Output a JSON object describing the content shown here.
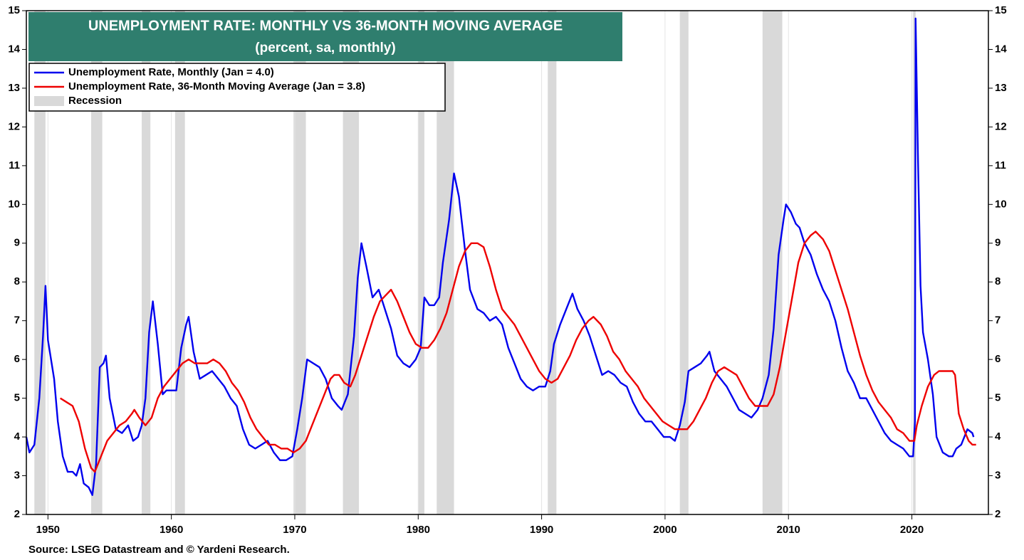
{
  "chart_data": {
    "type": "line",
    "title": "UNEMPLOYMENT RATE: MONTHLY VS 36-MONTH MOVING AVERAGE",
    "subtitle": "(percent, sa, monthly)",
    "source": "Source: LSEG Datastream and © Yardeni Research.",
    "xlim": [
      1948.25,
      2026.2
    ],
    "ylim": [
      2,
      15
    ],
    "xticks": [
      1950,
      1960,
      1970,
      1980,
      1990,
      2000,
      2010,
      2020
    ],
    "yticks": [
      2,
      3,
      4,
      5,
      6,
      7,
      8,
      9,
      10,
      11,
      12,
      13,
      14,
      15
    ],
    "grid": true,
    "recession_label": "Recession",
    "recession_color": "#d9d9d9",
    "recessions": [
      [
        1948.9,
        1949.8
      ],
      [
        1953.5,
        1954.4
      ],
      [
        1957.6,
        1958.3
      ],
      [
        1960.3,
        1961.1
      ],
      [
        1969.9,
        1970.9
      ],
      [
        1973.9,
        1975.2
      ],
      [
        1980.0,
        1980.5
      ],
      [
        1981.5,
        1982.9
      ],
      [
        1990.5,
        1991.2
      ],
      [
        2001.2,
        2001.9
      ],
      [
        2007.9,
        2009.5
      ],
      [
        2020.1,
        2020.3
      ]
    ],
    "series": [
      {
        "name": "Unemployment Rate, Monthly  (Jan = 4.0)",
        "color": "#0000ee",
        "x": [
          1948.25,
          1948.5,
          1948.9,
          1949.3,
          1949.6,
          1949.8,
          1950.0,
          1950.5,
          1950.8,
          1951.2,
          1951.6,
          1952.0,
          1952.3,
          1952.6,
          1952.9,
          1953.3,
          1953.6,
          1953.9,
          1954.2,
          1954.5,
          1954.7,
          1955.0,
          1955.5,
          1956.0,
          1956.5,
          1956.9,
          1957.3,
          1957.6,
          1957.9,
          1958.2,
          1958.5,
          1958.9,
          1959.3,
          1959.6,
          1960.0,
          1960.4,
          1960.8,
          1961.2,
          1961.4,
          1961.8,
          1962.3,
          1962.8,
          1963.3,
          1963.8,
          1964.3,
          1964.8,
          1965.3,
          1965.8,
          1966.3,
          1966.8,
          1967.3,
          1967.8,
          1968.3,
          1968.8,
          1969.3,
          1969.8,
          1970.2,
          1970.6,
          1971.0,
          1971.5,
          1972.0,
          1972.5,
          1973.0,
          1973.5,
          1973.8,
          1974.3,
          1974.8,
          1975.1,
          1975.4,
          1975.8,
          1976.3,
          1976.8,
          1977.3,
          1977.8,
          1978.3,
          1978.8,
          1979.3,
          1979.8,
          1980.2,
          1980.5,
          1980.9,
          1981.3,
          1981.7,
          1982.0,
          1982.5,
          1982.9,
          1983.3,
          1983.8,
          1984.2,
          1984.8,
          1985.3,
          1985.8,
          1986.3,
          1986.8,
          1987.3,
          1987.8,
          1988.3,
          1988.8,
          1989.3,
          1989.8,
          1990.3,
          1990.7,
          1991.0,
          1991.5,
          1992.0,
          1992.5,
          1992.9,
          1993.4,
          1993.9,
          1994.4,
          1994.9,
          1995.4,
          1995.9,
          1996.4,
          1996.9,
          1997.4,
          1997.9,
          1998.4,
          1998.9,
          1999.4,
          1999.9,
          2000.4,
          2000.8,
          2001.2,
          2001.6,
          2001.9,
          2002.4,
          2002.9,
          2003.4,
          2003.6,
          2004.0,
          2004.5,
          2005.0,
          2005.5,
          2006.0,
          2006.5,
          2007.0,
          2007.5,
          2007.9,
          2008.4,
          2008.8,
          2009.2,
          2009.6,
          2009.8,
          2010.2,
          2010.6,
          2010.9,
          2011.3,
          2011.8,
          2012.3,
          2012.8,
          2013.3,
          2013.8,
          2014.3,
          2014.8,
          2015.3,
          2015.8,
          2016.3,
          2016.8,
          2017.3,
          2017.8,
          2018.3,
          2018.8,
          2019.3,
          2019.8,
          2020.1,
          2020.25,
          2020.3,
          2020.5,
          2020.7,
          2020.9,
          2021.3,
          2021.7,
          2022.0,
          2022.5,
          2023.0,
          2023.3,
          2023.6,
          2024.0,
          2024.5,
          2024.9,
          2025.0
        ],
        "values": [
          4.0,
          3.6,
          3.8,
          5.0,
          6.6,
          7.9,
          6.5,
          5.5,
          4.4,
          3.5,
          3.1,
          3.1,
          3.0,
          3.3,
          2.8,
          2.7,
          2.5,
          3.3,
          5.8,
          5.9,
          6.1,
          5.0,
          4.2,
          4.1,
          4.3,
          3.9,
          4.0,
          4.3,
          5.0,
          6.7,
          7.5,
          6.4,
          5.1,
          5.2,
          5.2,
          5.2,
          6.3,
          6.9,
          7.1,
          6.2,
          5.5,
          5.6,
          5.7,
          5.5,
          5.3,
          5.0,
          4.8,
          4.2,
          3.8,
          3.7,
          3.8,
          3.9,
          3.6,
          3.4,
          3.4,
          3.5,
          4.2,
          5.0,
          6.0,
          5.9,
          5.8,
          5.5,
          5.0,
          4.8,
          4.7,
          5.1,
          6.6,
          8.1,
          9.0,
          8.4,
          7.6,
          7.8,
          7.3,
          6.8,
          6.1,
          5.9,
          5.8,
          6.0,
          6.3,
          7.6,
          7.4,
          7.4,
          7.6,
          8.5,
          9.6,
          10.8,
          10.2,
          8.8,
          7.8,
          7.3,
          7.2,
          7.0,
          7.1,
          6.9,
          6.3,
          5.9,
          5.5,
          5.3,
          5.2,
          5.3,
          5.3,
          5.7,
          6.4,
          6.9,
          7.3,
          7.7,
          7.3,
          7.0,
          6.6,
          6.1,
          5.6,
          5.7,
          5.6,
          5.4,
          5.3,
          4.9,
          4.6,
          4.4,
          4.4,
          4.2,
          4.0,
          4.0,
          3.9,
          4.3,
          4.9,
          5.7,
          5.8,
          5.9,
          6.1,
          6.2,
          5.7,
          5.5,
          5.3,
          5.0,
          4.7,
          4.6,
          4.5,
          4.7,
          5.0,
          5.6,
          6.8,
          8.7,
          9.6,
          10.0,
          9.8,
          9.5,
          9.4,
          9.0,
          8.7,
          8.2,
          7.8,
          7.5,
          7.0,
          6.3,
          5.7,
          5.4,
          5.0,
          5.0,
          4.7,
          4.4,
          4.1,
          3.9,
          3.8,
          3.7,
          3.5,
          3.5,
          4.4,
          14.8,
          11.1,
          7.9,
          6.7,
          6.0,
          5.1,
          4.0,
          3.6,
          3.5,
          3.5,
          3.7,
          3.8,
          4.2,
          4.1,
          4.0
        ]
      },
      {
        "name": "Unemployment Rate, 36-Month Moving Average (Jan = 3.8)",
        "color": "#ee0000",
        "x": [
          1951.0,
          1951.5,
          1952.0,
          1952.5,
          1953.0,
          1953.5,
          1953.8,
          1954.3,
          1954.8,
          1955.3,
          1955.8,
          1956.3,
          1956.8,
          1957.0,
          1957.4,
          1957.9,
          1958.4,
          1958.9,
          1959.4,
          1959.9,
          1960.4,
          1960.9,
          1961.4,
          1961.9,
          1962.4,
          1962.9,
          1963.4,
          1963.9,
          1964.4,
          1964.9,
          1965.4,
          1965.9,
          1966.4,
          1966.9,
          1967.4,
          1967.9,
          1968.4,
          1968.9,
          1969.4,
          1969.9,
          1970.4,
          1970.9,
          1971.4,
          1971.9,
          1972.4,
          1972.9,
          1973.2,
          1973.6,
          1974.0,
          1974.5,
          1974.9,
          1975.4,
          1975.9,
          1976.4,
          1976.9,
          1977.5,
          1977.8,
          1978.3,
          1978.8,
          1979.3,
          1979.8,
          1980.3,
          1980.8,
          1981.3,
          1981.8,
          1982.3,
          1982.8,
          1983.3,
          1983.8,
          1984.3,
          1984.8,
          1985.3,
          1985.8,
          1986.3,
          1986.8,
          1987.3,
          1987.8,
          1988.3,
          1988.8,
          1989.3,
          1989.8,
          1990.3,
          1990.8,
          1991.3,
          1991.8,
          1992.3,
          1992.8,
          1993.3,
          1993.8,
          1994.2,
          1994.8,
          1995.3,
          1995.8,
          1996.3,
          1996.8,
          1997.3,
          1997.8,
          1998.3,
          1998.8,
          1999.3,
          1999.8,
          2000.3,
          2000.8,
          2001.3,
          2001.8,
          2002.3,
          2002.8,
          2003.3,
          2003.8,
          2004.3,
          2004.8,
          2005.3,
          2005.8,
          2006.3,
          2006.8,
          2007.3,
          2007.8,
          2008.3,
          2008.8,
          2009.3,
          2009.8,
          2010.3,
          2010.8,
          2011.3,
          2011.8,
          2012.2,
          2012.8,
          2013.3,
          2013.8,
          2014.3,
          2014.8,
          2015.3,
          2015.8,
          2016.3,
          2016.8,
          2017.3,
          2017.8,
          2018.3,
          2018.8,
          2019.3,
          2019.8,
          2020.2,
          2020.4,
          2020.8,
          2021.3,
          2021.8,
          2022.2,
          2022.8,
          2023.3,
          2023.5,
          2023.8,
          2024.2,
          2024.6,
          2024.9,
          2025.2
        ],
        "values": [
          5.0,
          4.9,
          4.8,
          4.4,
          3.7,
          3.2,
          3.1,
          3.5,
          3.9,
          4.1,
          4.3,
          4.4,
          4.6,
          4.7,
          4.5,
          4.3,
          4.5,
          5.0,
          5.3,
          5.5,
          5.7,
          5.9,
          6.0,
          5.9,
          5.9,
          5.9,
          6.0,
          5.9,
          5.7,
          5.4,
          5.2,
          4.9,
          4.5,
          4.2,
          4.0,
          3.8,
          3.8,
          3.7,
          3.7,
          3.6,
          3.7,
          3.9,
          4.3,
          4.7,
          5.1,
          5.5,
          5.6,
          5.6,
          5.4,
          5.3,
          5.6,
          6.1,
          6.6,
          7.1,
          7.5,
          7.7,
          7.8,
          7.5,
          7.1,
          6.7,
          6.4,
          6.3,
          6.3,
          6.5,
          6.8,
          7.2,
          7.8,
          8.4,
          8.8,
          9.0,
          9.0,
          8.9,
          8.4,
          7.8,
          7.3,
          7.1,
          6.9,
          6.6,
          6.3,
          6.0,
          5.7,
          5.5,
          5.4,
          5.5,
          5.8,
          6.1,
          6.5,
          6.8,
          7.0,
          7.1,
          6.9,
          6.6,
          6.2,
          6.0,
          5.7,
          5.5,
          5.3,
          5.0,
          4.8,
          4.6,
          4.4,
          4.3,
          4.2,
          4.2,
          4.2,
          4.4,
          4.7,
          5.0,
          5.4,
          5.7,
          5.8,
          5.7,
          5.6,
          5.3,
          5.0,
          4.8,
          4.8,
          4.8,
          5.1,
          5.8,
          6.7,
          7.6,
          8.5,
          9.0,
          9.2,
          9.3,
          9.1,
          8.8,
          8.3,
          7.8,
          7.3,
          6.7,
          6.1,
          5.6,
          5.2,
          4.9,
          4.7,
          4.5,
          4.2,
          4.1,
          3.9,
          3.9,
          4.3,
          4.8,
          5.3,
          5.6,
          5.7,
          5.7,
          5.7,
          5.6,
          4.6,
          4.2,
          3.9,
          3.8,
          3.8
        ]
      }
    ]
  }
}
